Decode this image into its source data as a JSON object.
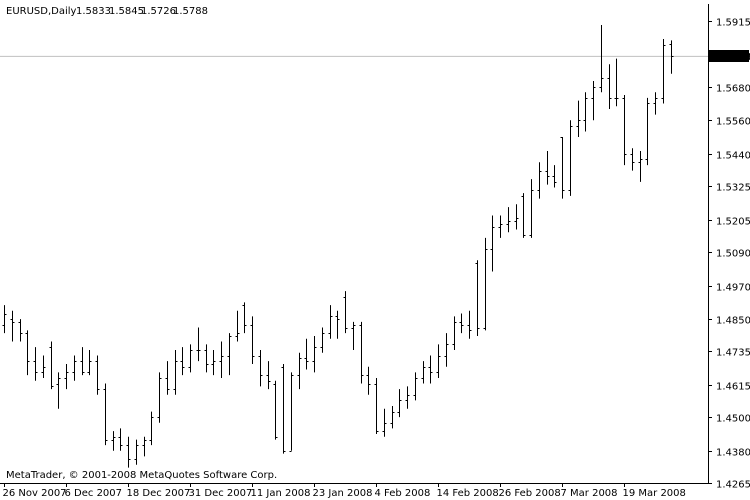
{
  "chart_data": {
    "type": "ohlc",
    "symbol_header": "EURUSD,Daily",
    "header_values": [
      "1.5833",
      "1.5845",
      "1.5726",
      "1.5788"
    ],
    "footer_text": "MetaTrader, © 2001-2008 MetaQuotes Software Corp.",
    "current_price": 1.5788,
    "current_price_label": "1.5788",
    "ylim": [
      1.4265,
      1.5975
    ],
    "y_ticks": [
      "1.5915",
      "1.5680",
      "1.5560",
      "1.5440",
      "1.5325",
      "1.5205",
      "1.5090",
      "1.4970",
      "1.4850",
      "1.4735",
      "1.4615",
      "1.4500",
      "1.4380",
      "1.4265"
    ],
    "x_ticks": [
      {
        "bar": 0,
        "label": "26 Nov 2007"
      },
      {
        "bar": 8,
        "label": "6 Dec 2007"
      },
      {
        "bar": 16,
        "label": "18 Dec 2007"
      },
      {
        "bar": 24,
        "label": "31 Dec 2007"
      },
      {
        "bar": 32,
        "label": "11 Jan 2008"
      },
      {
        "bar": 40,
        "label": "23 Jan 2008"
      },
      {
        "bar": 48,
        "label": "4 Feb 2008"
      },
      {
        "bar": 56,
        "label": "14 Feb 2008"
      },
      {
        "bar": 64,
        "label": "26 Feb 2008"
      },
      {
        "bar": 72,
        "label": "7 Mar 2008"
      },
      {
        "bar": 80,
        "label": "19 Mar 2008"
      }
    ],
    "colors": {
      "background": "#ffffff",
      "bar": "#000000",
      "price_line": "#c0c0c0",
      "axis": "#000000",
      "price_label_bg": "#000000",
      "price_label_text": "#ffffff"
    },
    "grid": false,
    "bars": [
      [
        1.483,
        1.49,
        1.48,
        1.487
      ],
      [
        1.485,
        1.488,
        1.477,
        1.484
      ],
      [
        1.484,
        1.485,
        1.477,
        1.48
      ],
      [
        1.48,
        1.481,
        1.465,
        1.47
      ],
      [
        1.47,
        1.475,
        1.463,
        1.466
      ],
      [
        1.466,
        1.472,
        1.464,
        1.468
      ],
      [
        1.475,
        1.477,
        1.46,
        1.461
      ],
      [
        1.462,
        1.466,
        1.453,
        1.464
      ],
      [
        1.464,
        1.469,
        1.46,
        1.466
      ],
      [
        1.466,
        1.472,
        1.463,
        1.47
      ],
      [
        1.47,
        1.475,
        1.465,
        1.466
      ],
      [
        1.466,
        1.474,
        1.465,
        1.47
      ],
      [
        1.47,
        1.472,
        1.458,
        1.46
      ],
      [
        1.46,
        1.462,
        1.44,
        1.442
      ],
      [
        1.442,
        1.445,
        1.438,
        1.443
      ],
      [
        1.443,
        1.446,
        1.438,
        1.44
      ],
      [
        1.44,
        1.443,
        1.432,
        1.435
      ],
      [
        1.435,
        1.442,
        1.433,
        1.44
      ],
      [
        1.44,
        1.443,
        1.436,
        1.442
      ],
      [
        1.442,
        1.452,
        1.44,
        1.45
      ],
      [
        1.45,
        1.466,
        1.448,
        1.464
      ],
      [
        1.464,
        1.47,
        1.458,
        1.46
      ],
      [
        1.46,
        1.474,
        1.458,
        1.47
      ],
      [
        1.47,
        1.475,
        1.465,
        1.468
      ],
      [
        1.468,
        1.476,
        1.466,
        1.474
      ],
      [
        1.474,
        1.482,
        1.47,
        1.474
      ],
      [
        1.474,
        1.476,
        1.466,
        1.469
      ],
      [
        1.469,
        1.474,
        1.465,
        1.47
      ],
      [
        1.47,
        1.477,
        1.464,
        1.472
      ],
      [
        1.472,
        1.48,
        1.465,
        1.479
      ],
      [
        1.479,
        1.488,
        1.477,
        1.48
      ],
      [
        1.49,
        1.491,
        1.48,
        1.483
      ],
      [
        1.483,
        1.486,
        1.469,
        1.472
      ],
      [
        1.472,
        1.474,
        1.461,
        1.465
      ],
      [
        1.465,
        1.47,
        1.46,
        1.463
      ],
      [
        1.462,
        1.463,
        1.442,
        1.443
      ],
      [
        1.468,
        1.469,
        1.437,
        1.438
      ],
      [
        1.438,
        1.466,
        1.438,
        1.465
      ],
      [
        1.465,
        1.473,
        1.46,
        1.471
      ],
      [
        1.471,
        1.478,
        1.467,
        1.47
      ],
      [
        1.47,
        1.479,
        1.466,
        1.475
      ],
      [
        1.475,
        1.482,
        1.473,
        1.48
      ],
      [
        1.48,
        1.49,
        1.478,
        1.486
      ],
      [
        1.486,
        1.488,
        1.478,
        1.485
      ],
      [
        1.493,
        1.495,
        1.48,
        1.482
      ],
      [
        1.482,
        1.484,
        1.474,
        1.483
      ],
      [
        1.483,
        1.484,
        1.462,
        1.465
      ],
      [
        1.465,
        1.468,
        1.458,
        1.462
      ],
      [
        1.462,
        1.464,
        1.444,
        1.445
      ],
      [
        1.445,
        1.453,
        1.443,
        1.448
      ],
      [
        1.448,
        1.454,
        1.446,
        1.452
      ],
      [
        1.452,
        1.46,
        1.45,
        1.456
      ],
      [
        1.456,
        1.461,
        1.453,
        1.458
      ],
      [
        1.458,
        1.466,
        1.456,
        1.464
      ],
      [
        1.464,
        1.47,
        1.462,
        1.468
      ],
      [
        1.468,
        1.472,
        1.462,
        1.466
      ],
      [
        1.466,
        1.476,
        1.464,
        1.472
      ],
      [
        1.472,
        1.48,
        1.468,
        1.476
      ],
      [
        1.476,
        1.486,
        1.474,
        1.484
      ],
      [
        1.484,
        1.487,
        1.48,
        1.483
      ],
      [
        1.483,
        1.488,
        1.478,
        1.481
      ],
      [
        1.505,
        1.506,
        1.479,
        1.482
      ],
      [
        1.482,
        1.514,
        1.481,
        1.51
      ],
      [
        1.51,
        1.522,
        1.502,
        1.518
      ],
      [
        1.518,
        1.522,
        1.514,
        1.519
      ],
      [
        1.519,
        1.525,
        1.516,
        1.52
      ],
      [
        1.52,
        1.526,
        1.517,
        1.521
      ],
      [
        1.529,
        1.53,
        1.514,
        1.515
      ],
      [
        1.515,
        1.535,
        1.514,
        1.531
      ],
      [
        1.531,
        1.541,
        1.528,
        1.538
      ],
      [
        1.538,
        1.545,
        1.533,
        1.536
      ],
      [
        1.536,
        1.54,
        1.532,
        1.534
      ],
      [
        1.55,
        1.55,
        1.528,
        1.531
      ],
      [
        1.531,
        1.556,
        1.529,
        1.554
      ],
      [
        1.554,
        1.563,
        1.55,
        1.556
      ],
      [
        1.556,
        1.566,
        1.552,
        1.564
      ],
      [
        1.564,
        1.57,
        1.556,
        1.568
      ],
      [
        1.568,
        1.59,
        1.566,
        1.571
      ],
      [
        1.571,
        1.576,
        1.56,
        1.564
      ],
      [
        1.564,
        1.578,
        1.561,
        1.564
      ],
      [
        1.564,
        1.565,
        1.54,
        1.544
      ],
      [
        1.544,
        1.546,
        1.538,
        1.541
      ],
      [
        1.541,
        1.545,
        1.534,
        1.542
      ],
      [
        1.542,
        1.564,
        1.54,
        1.562
      ],
      [
        1.562,
        1.566,
        1.558,
        1.564
      ],
      [
        1.564,
        1.585,
        1.562,
        1.583
      ],
      [
        1.5833,
        1.5845,
        1.5726,
        1.5788
      ]
    ]
  }
}
